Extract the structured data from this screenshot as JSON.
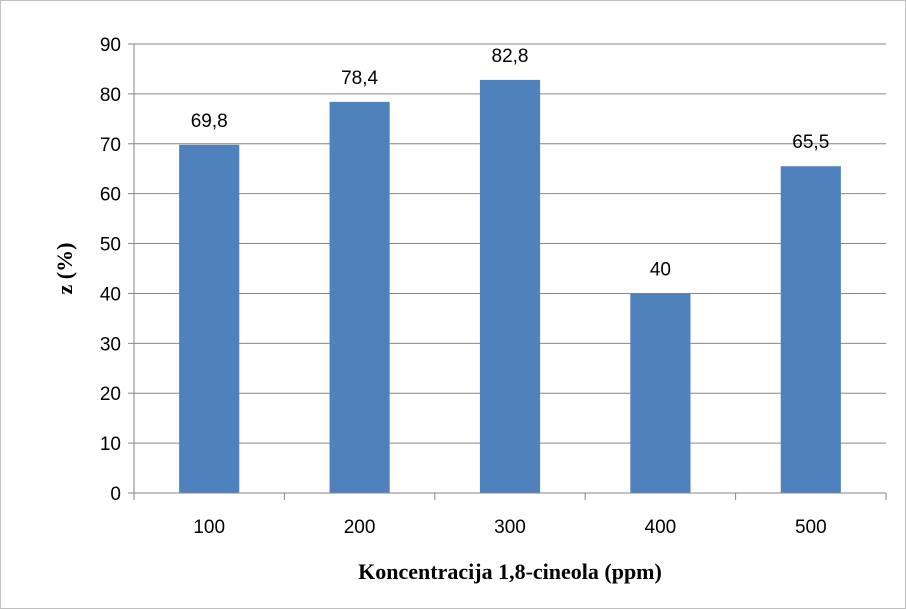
{
  "chart_data": {
    "type": "bar",
    "categories": [
      "100",
      "200",
      "300",
      "400",
      "500"
    ],
    "values": [
      69.8,
      78.4,
      82.8,
      40,
      65.5
    ],
    "data_labels": [
      "69,8",
      "78,4",
      "82,8",
      "40",
      "65,5"
    ],
    "xlabel": "Koncentracija 1,8-cineola (ppm)",
    "ylabel": "z (%)",
    "ylim": [
      0,
      90
    ],
    "yticks": [
      0,
      10,
      20,
      30,
      40,
      50,
      60,
      70,
      80,
      90
    ],
    "grid": true,
    "legend": "none",
    "bar_color": "#4f81bd",
    "grid_color": "#868686"
  }
}
